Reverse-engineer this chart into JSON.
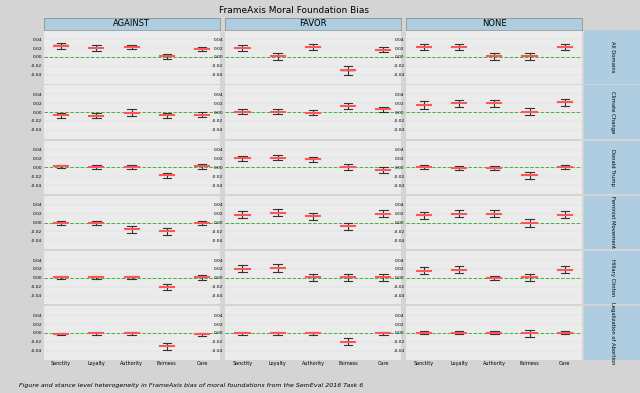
{
  "title": "FrameAxis Moral Foundation Bias",
  "stances": [
    "AGAINST",
    "FAVOR",
    "NONE"
  ],
  "topics": [
    "All Domains",
    "Climate Change",
    "Donald Trump",
    "Feminist Movement",
    "Hillary Clinton",
    "Legalization of Abortion"
  ],
  "foundations": [
    "Sanctity",
    "Loyalty",
    "Authority",
    "Fairness",
    "Care"
  ],
  "bg_color": "#d4d4d4",
  "panel_bg": "#ebebeb",
  "zero_line_color": "#22aa22",
  "header_bg": "#aecde0",
  "row_label_bg": "#aecde0",
  "data": {
    "AGAINST": {
      "All Domains": {
        "Sanctity": {
          "mean": 0.025,
          "lo": 0.018,
          "hi": 0.032,
          "ci_lo": 0.022,
          "ci_hi": 0.028
        },
        "Loyalty": {
          "mean": 0.02,
          "lo": 0.013,
          "hi": 0.027,
          "ci_lo": 0.018,
          "ci_hi": 0.022
        },
        "Authority": {
          "mean": 0.022,
          "lo": 0.017,
          "hi": 0.027,
          "ci_lo": 0.02,
          "ci_hi": 0.024
        },
        "Fairness": {
          "mean": 0.001,
          "lo": -0.005,
          "hi": 0.007,
          "ci_lo": -0.001,
          "ci_hi": 0.003
        },
        "Care": {
          "mean": 0.018,
          "lo": 0.013,
          "hi": 0.023,
          "ci_lo": 0.016,
          "ci_hi": 0.02
        }
      },
      "Climate Change": {
        "Sanctity": {
          "mean": -0.007,
          "lo": -0.013,
          "hi": -0.001,
          "ci_lo": -0.009,
          "ci_hi": -0.005
        },
        "Loyalty": {
          "mean": -0.008,
          "lo": -0.014,
          "hi": -0.002,
          "ci_lo": -0.01,
          "ci_hi": -0.006
        },
        "Authority": {
          "mean": -0.001,
          "lo": -0.009,
          "hi": 0.007,
          "ci_lo": -0.003,
          "ci_hi": 0.001
        },
        "Fairness": {
          "mean": -0.007,
          "lo": -0.013,
          "hi": -0.001,
          "ci_lo": -0.009,
          "ci_hi": -0.005
        },
        "Care": {
          "mean": -0.006,
          "lo": -0.012,
          "hi": 0.0,
          "ci_lo": -0.008,
          "ci_hi": -0.004
        }
      },
      "Donald Trump": {
        "Sanctity": {
          "mean": 0.002,
          "lo": -0.002,
          "hi": 0.006,
          "ci_lo": 0.001,
          "ci_hi": 0.003
        },
        "Loyalty": {
          "mean": 0.001,
          "lo": -0.003,
          "hi": 0.005,
          "ci_lo": 0.0,
          "ci_hi": 0.002
        },
        "Authority": {
          "mean": 0.001,
          "lo": -0.003,
          "hi": 0.005,
          "ci_lo": 0.0,
          "ci_hi": 0.002
        },
        "Fairness": {
          "mean": -0.018,
          "lo": -0.024,
          "hi": -0.012,
          "ci_lo": -0.02,
          "ci_hi": -0.016
        },
        "Care": {
          "mean": 0.002,
          "lo": -0.003,
          "hi": 0.007,
          "ci_lo": 0.0,
          "ci_hi": 0.004
        }
      },
      "Feminist Movement": {
        "Sanctity": {
          "mean": -0.001,
          "lo": -0.005,
          "hi": 0.003,
          "ci_lo": -0.002,
          "ci_hi": 0.0
        },
        "Loyalty": {
          "mean": -0.001,
          "lo": -0.005,
          "hi": 0.003,
          "ci_lo": -0.002,
          "ci_hi": 0.0
        },
        "Authority": {
          "mean": -0.015,
          "lo": -0.023,
          "hi": -0.007,
          "ci_lo": -0.017,
          "ci_hi": -0.013
        },
        "Fairness": {
          "mean": -0.02,
          "lo": -0.027,
          "hi": -0.013,
          "ci_lo": -0.022,
          "ci_hi": -0.018
        },
        "Care": {
          "mean": -0.001,
          "lo": -0.005,
          "hi": 0.003,
          "ci_lo": -0.002,
          "ci_hi": 0.0
        }
      },
      "Hillary Clinton": {
        "Sanctity": {
          "mean": 0.001,
          "lo": -0.003,
          "hi": 0.005,
          "ci_lo": 0.0,
          "ci_hi": 0.002
        },
        "Loyalty": {
          "mean": 0.001,
          "lo": -0.003,
          "hi": 0.005,
          "ci_lo": 0.0,
          "ci_hi": 0.002
        },
        "Authority": {
          "mean": 0.001,
          "lo": -0.003,
          "hi": 0.005,
          "ci_lo": 0.0,
          "ci_hi": 0.002
        },
        "Fairness": {
          "mean": -0.02,
          "lo": -0.027,
          "hi": -0.013,
          "ci_lo": -0.022,
          "ci_hi": -0.018
        },
        "Care": {
          "mean": 0.001,
          "lo": -0.004,
          "hi": 0.006,
          "ci_lo": -0.001,
          "ci_hi": 0.003
        }
      },
      "Legalization of Abortion": {
        "Sanctity": {
          "mean": -0.002,
          "lo": -0.005,
          "hi": 0.001,
          "ci_lo": -0.003,
          "ci_hi": -0.001
        },
        "Loyalty": {
          "mean": -0.001,
          "lo": -0.004,
          "hi": 0.002,
          "ci_lo": -0.002,
          "ci_hi": 0.0
        },
        "Authority": {
          "mean": -0.001,
          "lo": -0.004,
          "hi": 0.002,
          "ci_lo": -0.002,
          "ci_hi": 0.0
        },
        "Fairness": {
          "mean": -0.03,
          "lo": -0.038,
          "hi": -0.022,
          "ci_lo": -0.032,
          "ci_hi": -0.028
        },
        "Care": {
          "mean": -0.003,
          "lo": -0.007,
          "hi": 0.001,
          "ci_lo": -0.004,
          "ci_hi": -0.002
        }
      }
    },
    "FAVOR": {
      "All Domains": {
        "Sanctity": {
          "mean": 0.02,
          "lo": 0.014,
          "hi": 0.026,
          "ci_lo": 0.018,
          "ci_hi": 0.022
        },
        "Loyalty": {
          "mean": 0.001,
          "lo": -0.006,
          "hi": 0.008,
          "ci_lo": -0.001,
          "ci_hi": 0.003
        },
        "Authority": {
          "mean": 0.022,
          "lo": 0.016,
          "hi": 0.028,
          "ci_lo": 0.02,
          "ci_hi": 0.024
        },
        "Fairness": {
          "mean": -0.03,
          "lo": -0.04,
          "hi": -0.02,
          "ci_lo": -0.033,
          "ci_hi": -0.027
        },
        "Care": {
          "mean": 0.016,
          "lo": 0.01,
          "hi": 0.022,
          "ci_lo": 0.014,
          "ci_hi": 0.018
        }
      },
      "Climate Change": {
        "Sanctity": {
          "mean": 0.001,
          "lo": -0.005,
          "hi": 0.007,
          "ci_lo": -0.001,
          "ci_hi": 0.003
        },
        "Loyalty": {
          "mean": 0.001,
          "lo": -0.005,
          "hi": 0.007,
          "ci_lo": -0.001,
          "ci_hi": 0.003
        },
        "Authority": {
          "mean": -0.001,
          "lo": -0.007,
          "hi": 0.005,
          "ci_lo": -0.003,
          "ci_hi": 0.001
        },
        "Fairness": {
          "mean": 0.014,
          "lo": 0.007,
          "hi": 0.021,
          "ci_lo": 0.012,
          "ci_hi": 0.016
        },
        "Care": {
          "mean": 0.006,
          "lo": 0.0,
          "hi": 0.012,
          "ci_lo": 0.004,
          "ci_hi": 0.008
        }
      },
      "Donald Trump": {
        "Sanctity": {
          "mean": 0.02,
          "lo": 0.014,
          "hi": 0.026,
          "ci_lo": 0.018,
          "ci_hi": 0.022
        },
        "Loyalty": {
          "mean": 0.022,
          "lo": 0.016,
          "hi": 0.028,
          "ci_lo": 0.02,
          "ci_hi": 0.024
        },
        "Authority": {
          "mean": 0.018,
          "lo": 0.012,
          "hi": 0.024,
          "ci_lo": 0.016,
          "ci_hi": 0.02
        },
        "Fairness": {
          "mean": 0.001,
          "lo": -0.006,
          "hi": 0.008,
          "ci_lo": -0.001,
          "ci_hi": 0.003
        },
        "Care": {
          "mean": -0.006,
          "lo": -0.013,
          "hi": 0.001,
          "ci_lo": -0.008,
          "ci_hi": -0.004
        }
      },
      "Feminist Movement": {
        "Sanctity": {
          "mean": 0.018,
          "lo": 0.01,
          "hi": 0.026,
          "ci_lo": 0.016,
          "ci_hi": 0.02
        },
        "Loyalty": {
          "mean": 0.022,
          "lo": 0.014,
          "hi": 0.03,
          "ci_lo": 0.02,
          "ci_hi": 0.024
        },
        "Authority": {
          "mean": 0.014,
          "lo": 0.006,
          "hi": 0.022,
          "ci_lo": 0.012,
          "ci_hi": 0.016
        },
        "Fairness": {
          "mean": -0.008,
          "lo": -0.016,
          "hi": 0.0,
          "ci_lo": -0.01,
          "ci_hi": -0.006
        },
        "Care": {
          "mean": 0.02,
          "lo": 0.012,
          "hi": 0.028,
          "ci_lo": 0.018,
          "ci_hi": 0.022
        }
      },
      "Hillary Clinton": {
        "Sanctity": {
          "mean": 0.02,
          "lo": 0.012,
          "hi": 0.028,
          "ci_lo": 0.018,
          "ci_hi": 0.022
        },
        "Loyalty": {
          "mean": 0.022,
          "lo": 0.014,
          "hi": 0.03,
          "ci_lo": 0.02,
          "ci_hi": 0.024
        },
        "Authority": {
          "mean": 0.001,
          "lo": -0.007,
          "hi": 0.009,
          "ci_lo": -0.001,
          "ci_hi": 0.003
        },
        "Fairness": {
          "mean": 0.001,
          "lo": -0.007,
          "hi": 0.009,
          "ci_lo": -0.001,
          "ci_hi": 0.003
        },
        "Care": {
          "mean": 0.001,
          "lo": -0.007,
          "hi": 0.009,
          "ci_lo": -0.001,
          "ci_hi": 0.003
        }
      },
      "Legalization of Abortion": {
        "Sanctity": {
          "mean": -0.001,
          "lo": -0.005,
          "hi": 0.003,
          "ci_lo": -0.002,
          "ci_hi": 0.0
        },
        "Loyalty": {
          "mean": -0.001,
          "lo": -0.005,
          "hi": 0.003,
          "ci_lo": -0.002,
          "ci_hi": 0.0
        },
        "Authority": {
          "mean": -0.001,
          "lo": -0.005,
          "hi": 0.003,
          "ci_lo": -0.002,
          "ci_hi": 0.0
        },
        "Fairness": {
          "mean": -0.02,
          "lo": -0.028,
          "hi": -0.012,
          "ci_lo": -0.022,
          "ci_hi": -0.018
        },
        "Care": {
          "mean": -0.001,
          "lo": -0.005,
          "hi": 0.003,
          "ci_lo": -0.002,
          "ci_hi": 0.0
        }
      }
    },
    "NONE": {
      "All Domains": {
        "Sanctity": {
          "mean": 0.022,
          "lo": 0.016,
          "hi": 0.028,
          "ci_lo": 0.02,
          "ci_hi": 0.024
        },
        "Loyalty": {
          "mean": 0.022,
          "lo": 0.016,
          "hi": 0.028,
          "ci_lo": 0.02,
          "ci_hi": 0.024
        },
        "Authority": {
          "mean": 0.001,
          "lo": -0.006,
          "hi": 0.008,
          "ci_lo": -0.001,
          "ci_hi": 0.003
        },
        "Fairness": {
          "mean": 0.001,
          "lo": -0.006,
          "hi": 0.008,
          "ci_lo": -0.001,
          "ci_hi": 0.003
        },
        "Care": {
          "mean": 0.022,
          "lo": 0.016,
          "hi": 0.028,
          "ci_lo": 0.02,
          "ci_hi": 0.024
        }
      },
      "Climate Change": {
        "Sanctity": {
          "mean": 0.016,
          "lo": 0.008,
          "hi": 0.024,
          "ci_lo": 0.014,
          "ci_hi": 0.018
        },
        "Loyalty": {
          "mean": 0.02,
          "lo": 0.012,
          "hi": 0.028,
          "ci_lo": 0.018,
          "ci_hi": 0.022
        },
        "Authority": {
          "mean": 0.02,
          "lo": 0.012,
          "hi": 0.028,
          "ci_lo": 0.018,
          "ci_hi": 0.022
        },
        "Fairness": {
          "mean": 0.001,
          "lo": -0.007,
          "hi": 0.009,
          "ci_lo": -0.001,
          "ci_hi": 0.003
        },
        "Care": {
          "mean": 0.022,
          "lo": 0.014,
          "hi": 0.03,
          "ci_lo": 0.02,
          "ci_hi": 0.024
        }
      },
      "Donald Trump": {
        "Sanctity": {
          "mean": 0.001,
          "lo": -0.003,
          "hi": 0.005,
          "ci_lo": 0.0,
          "ci_hi": 0.002
        },
        "Loyalty": {
          "mean": -0.001,
          "lo": -0.005,
          "hi": 0.003,
          "ci_lo": -0.002,
          "ci_hi": 0.0
        },
        "Authority": {
          "mean": -0.001,
          "lo": -0.005,
          "hi": 0.003,
          "ci_lo": -0.002,
          "ci_hi": 0.0
        },
        "Fairness": {
          "mean": -0.018,
          "lo": -0.026,
          "hi": -0.01,
          "ci_lo": -0.02,
          "ci_hi": -0.016
        },
        "Care": {
          "mean": 0.001,
          "lo": -0.003,
          "hi": 0.005,
          "ci_lo": 0.0,
          "ci_hi": 0.002
        }
      },
      "Feminist Movement": {
        "Sanctity": {
          "mean": 0.016,
          "lo": 0.008,
          "hi": 0.024,
          "ci_lo": 0.014,
          "ci_hi": 0.018
        },
        "Loyalty": {
          "mean": 0.02,
          "lo": 0.012,
          "hi": 0.028,
          "ci_lo": 0.018,
          "ci_hi": 0.022
        },
        "Authority": {
          "mean": 0.02,
          "lo": 0.012,
          "hi": 0.028,
          "ci_lo": 0.018,
          "ci_hi": 0.022
        },
        "Fairness": {
          "mean": -0.001,
          "lo": -0.009,
          "hi": 0.007,
          "ci_lo": -0.003,
          "ci_hi": 0.001
        },
        "Care": {
          "mean": 0.018,
          "lo": 0.01,
          "hi": 0.026,
          "ci_lo": 0.016,
          "ci_hi": 0.02
        }
      },
      "Hillary Clinton": {
        "Sanctity": {
          "mean": 0.016,
          "lo": 0.008,
          "hi": 0.024,
          "ci_lo": 0.014,
          "ci_hi": 0.018
        },
        "Loyalty": {
          "mean": 0.018,
          "lo": 0.01,
          "hi": 0.026,
          "ci_lo": 0.016,
          "ci_hi": 0.02
        },
        "Authority": {
          "mean": -0.001,
          "lo": -0.005,
          "hi": 0.003,
          "ci_lo": -0.002,
          "ci_hi": 0.0
        },
        "Fairness": {
          "mean": 0.001,
          "lo": -0.007,
          "hi": 0.009,
          "ci_lo": -0.001,
          "ci_hi": 0.003
        },
        "Care": {
          "mean": 0.018,
          "lo": 0.01,
          "hi": 0.026,
          "ci_lo": 0.016,
          "ci_hi": 0.02
        }
      },
      "Legalization of Abortion": {
        "Sanctity": {
          "mean": 0.001,
          "lo": -0.003,
          "hi": 0.005,
          "ci_lo": 0.0,
          "ci_hi": 0.002
        },
        "Loyalty": {
          "mean": 0.001,
          "lo": -0.003,
          "hi": 0.005,
          "ci_lo": 0.0,
          "ci_hi": 0.002
        },
        "Authority": {
          "mean": 0.001,
          "lo": -0.003,
          "hi": 0.005,
          "ci_lo": 0.0,
          "ci_hi": 0.002
        },
        "Fairness": {
          "mean": -0.001,
          "lo": -0.009,
          "hi": 0.007,
          "ci_lo": -0.003,
          "ci_hi": 0.001
        },
        "Care": {
          "mean": 0.001,
          "lo": -0.003,
          "hi": 0.005,
          "ci_lo": 0.0,
          "ci_hi": 0.002
        }
      }
    }
  }
}
